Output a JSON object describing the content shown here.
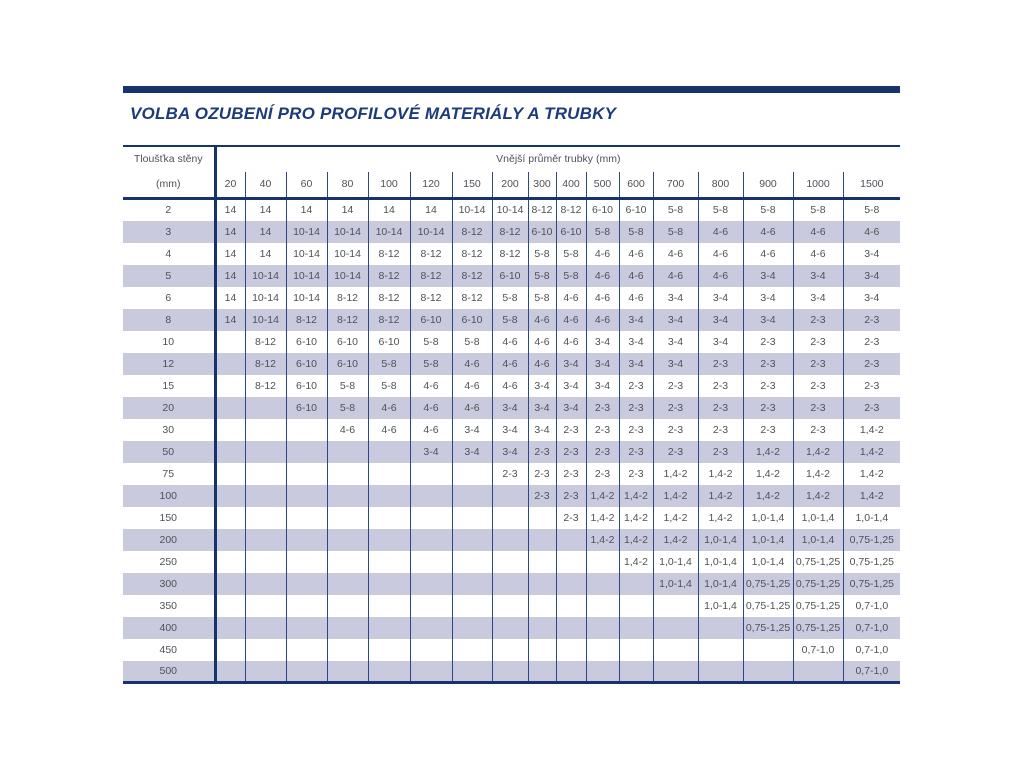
{
  "title": "VOLBA OZUBENÍ PRO PROFILOVÉ MATERIÁLY A TRUBKY",
  "colors": {
    "accent_navy": "#17336b",
    "title_blue": "#1d3a7c",
    "stripe_lavender": "#c9cade",
    "grid_line": "#2c4884",
    "cell_text": "#4f5158"
  },
  "table": {
    "row_header_title": "Tloušťka stěny",
    "row_header_unit": "(mm)",
    "col_group_title": "Vnější průměr trubky (mm)",
    "columns": [
      "20",
      "40",
      "60",
      "80",
      "100",
      "120",
      "150",
      "200",
      "300",
      "400",
      "500",
      "600",
      "700",
      "800",
      "900",
      "1000",
      "1500"
    ],
    "rows": [
      {
        "label": "2",
        "values": [
          "14",
          "14",
          "14",
          "14",
          "14",
          "14",
          "10-14",
          "10-14",
          "8-12",
          "8-12",
          "6-10",
          "6-10",
          "5-8",
          "5-8",
          "5-8",
          "5-8",
          "5-8"
        ]
      },
      {
        "label": "3",
        "values": [
          "14",
          "14",
          "10-14",
          "10-14",
          "10-14",
          "10-14",
          "8-12",
          "8-12",
          "6-10",
          "6-10",
          "5-8",
          "5-8",
          "5-8",
          "4-6",
          "4-6",
          "4-6",
          "4-6"
        ]
      },
      {
        "label": "4",
        "values": [
          "14",
          "14",
          "10-14",
          "10-14",
          "8-12",
          "8-12",
          "8-12",
          "8-12",
          "5-8",
          "5-8",
          "4-6",
          "4-6",
          "4-6",
          "4-6",
          "4-6",
          "4-6",
          "3-4"
        ]
      },
      {
        "label": "5",
        "values": [
          "14",
          "10-14",
          "10-14",
          "10-14",
          "8-12",
          "8-12",
          "8-12",
          "6-10",
          "5-8",
          "5-8",
          "4-6",
          "4-6",
          "4-6",
          "4-6",
          "3-4",
          "3-4",
          "3-4"
        ]
      },
      {
        "label": "6",
        "values": [
          "14",
          "10-14",
          "10-14",
          "8-12",
          "8-12",
          "8-12",
          "8-12",
          "5-8",
          "5-8",
          "4-6",
          "4-6",
          "4-6",
          "3-4",
          "3-4",
          "3-4",
          "3-4",
          "3-4"
        ]
      },
      {
        "label": "8",
        "values": [
          "14",
          "10-14",
          "8-12",
          "8-12",
          "8-12",
          "6-10",
          "6-10",
          "5-8",
          "4-6",
          "4-6",
          "4-6",
          "3-4",
          "3-4",
          "3-4",
          "3-4",
          "2-3",
          "2-3"
        ]
      },
      {
        "label": "10",
        "values": [
          "",
          "8-12",
          "6-10",
          "6-10",
          "6-10",
          "5-8",
          "5-8",
          "4-6",
          "4-6",
          "4-6",
          "3-4",
          "3-4",
          "3-4",
          "3-4",
          "2-3",
          "2-3",
          "2-3"
        ]
      },
      {
        "label": "12",
        "values": [
          "",
          "8-12",
          "6-10",
          "6-10",
          "5-8",
          "5-8",
          "4-6",
          "4-6",
          "4-6",
          "3-4",
          "3-4",
          "3-4",
          "3-4",
          "2-3",
          "2-3",
          "2-3",
          "2-3"
        ]
      },
      {
        "label": "15",
        "values": [
          "",
          "8-12",
          "6-10",
          "5-8",
          "5-8",
          "4-6",
          "4-6",
          "4-6",
          "3-4",
          "3-4",
          "3-4",
          "2-3",
          "2-3",
          "2-3",
          "2-3",
          "2-3",
          "2-3"
        ]
      },
      {
        "label": "20",
        "values": [
          "",
          "",
          "6-10",
          "5-8",
          "4-6",
          "4-6",
          "4-6",
          "3-4",
          "3-4",
          "3-4",
          "2-3",
          "2-3",
          "2-3",
          "2-3",
          "2-3",
          "2-3",
          "2-3"
        ]
      },
      {
        "label": "30",
        "values": [
          "",
          "",
          "",
          "4-6",
          "4-6",
          "4-6",
          "3-4",
          "3-4",
          "3-4",
          "2-3",
          "2-3",
          "2-3",
          "2-3",
          "2-3",
          "2-3",
          "2-3",
          "1,4-2"
        ]
      },
      {
        "label": "50",
        "values": [
          "",
          "",
          "",
          "",
          "",
          "3-4",
          "3-4",
          "3-4",
          "2-3",
          "2-3",
          "2-3",
          "2-3",
          "2-3",
          "2-3",
          "1,4-2",
          "1,4-2",
          "1,4-2"
        ]
      },
      {
        "label": "75",
        "values": [
          "",
          "",
          "",
          "",
          "",
          "",
          "",
          "2-3",
          "2-3",
          "2-3",
          "2-3",
          "2-3",
          "1,4-2",
          "1,4-2",
          "1,4-2",
          "1,4-2",
          "1,4-2"
        ]
      },
      {
        "label": "100",
        "values": [
          "",
          "",
          "",
          "",
          "",
          "",
          "",
          "",
          "2-3",
          "2-3",
          "1,4-2",
          "1,4-2",
          "1,4-2",
          "1,4-2",
          "1,4-2",
          "1,4-2",
          "1,4-2"
        ]
      },
      {
        "label": "150",
        "values": [
          "",
          "",
          "",
          "",
          "",
          "",
          "",
          "",
          "",
          "2-3",
          "1,4-2",
          "1,4-2",
          "1,4-2",
          "1,4-2",
          "1,0-1,4",
          "1,0-1,4",
          "1,0-1,4"
        ]
      },
      {
        "label": "200",
        "values": [
          "",
          "",
          "",
          "",
          "",
          "",
          "",
          "",
          "",
          "",
          "1,4-2",
          "1,4-2",
          "1,4-2",
          "1,0-1,4",
          "1,0-1,4",
          "1,0-1,4",
          "0,75-1,25"
        ]
      },
      {
        "label": "250",
        "values": [
          "",
          "",
          "",
          "",
          "",
          "",
          "",
          "",
          "",
          "",
          "",
          "1,4-2",
          "1,0-1,4",
          "1,0-1,4",
          "1,0-1,4",
          "0,75-1,25",
          "0,75-1,25"
        ]
      },
      {
        "label": "300",
        "values": [
          "",
          "",
          "",
          "",
          "",
          "",
          "",
          "",
          "",
          "",
          "",
          "",
          "1,0-1,4",
          "1,0-1,4",
          "0,75-1,25",
          "0,75-1,25",
          "0,75-1,25"
        ]
      },
      {
        "label": "350",
        "values": [
          "",
          "",
          "",
          "",
          "",
          "",
          "",
          "",
          "",
          "",
          "",
          "",
          "",
          "1,0-1,4",
          "0,75-1,25",
          "0,75-1,25",
          "0,7-1,0"
        ]
      },
      {
        "label": "400",
        "values": [
          "",
          "",
          "",
          "",
          "",
          "",
          "",
          "",
          "",
          "",
          "",
          "",
          "",
          "",
          "0,75-1,25",
          "0,75-1,25",
          "0,7-1,0"
        ]
      },
      {
        "label": "450",
        "values": [
          "",
          "",
          "",
          "",
          "",
          "",
          "",
          "",
          "",
          "",
          "",
          "",
          "",
          "",
          "",
          "0,7-1,0",
          "0,7-1,0"
        ]
      },
      {
        "label": "500",
        "values": [
          "",
          "",
          "",
          "",
          "",
          "",
          "",
          "",
          "",
          "",
          "",
          "",
          "",
          "",
          "",
          "",
          "0,7-1,0"
        ]
      }
    ]
  }
}
